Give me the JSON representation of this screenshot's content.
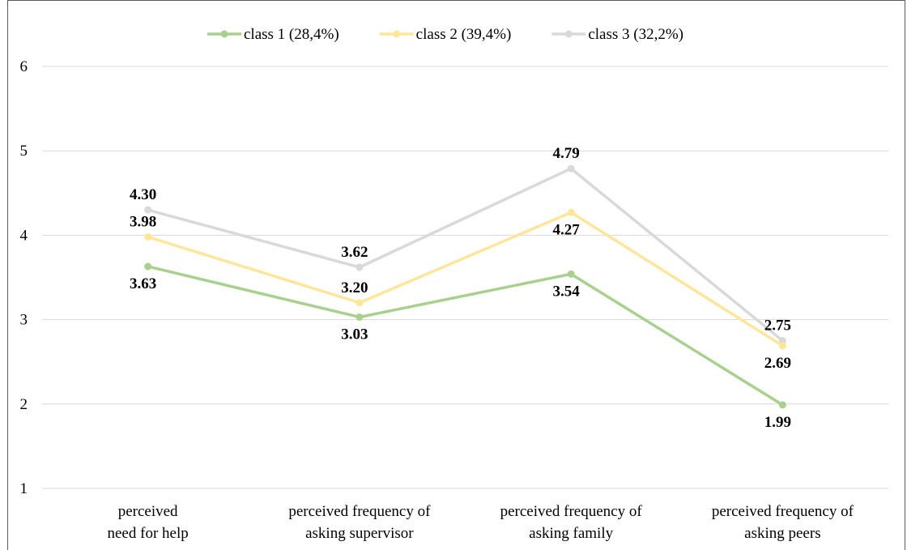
{
  "chart_data": {
    "type": "line",
    "title": "",
    "xlabel": "",
    "ylabel": "",
    "ylim": [
      1,
      6
    ],
    "yticks": [
      1,
      2,
      3,
      4,
      5,
      6
    ],
    "grid": "horizontal",
    "legend_position": "top",
    "categories": [
      [
        "perceived",
        "need for help"
      ],
      [
        "perceived frequency of",
        "asking supervisor"
      ],
      [
        "perceived frequency of",
        "asking family"
      ],
      [
        "perceived frequency of",
        "asking peers"
      ]
    ],
    "series": [
      {
        "name": "class 1 (28,4%)",
        "color": "#a9d18e",
        "values": [
          3.63,
          3.03,
          3.54,
          1.99
        ],
        "labels": [
          "3.63",
          "3.03",
          "3.54",
          "1.99"
        ],
        "label_pos": [
          "below",
          "below",
          "below",
          "below"
        ]
      },
      {
        "name": "class 2 (39,4%)",
        "color": "#ffe699",
        "values": [
          3.98,
          3.2,
          4.27,
          2.69
        ],
        "labels": [
          "3.98",
          "3.20",
          "4.27",
          "2.69"
        ],
        "label_pos": [
          "above",
          "above",
          "below",
          "below"
        ]
      },
      {
        "name": "class 3 (32,2%)",
        "color": "#d9d9d9",
        "values": [
          4.3,
          3.62,
          4.79,
          2.75
        ],
        "labels": [
          "4.30",
          "3.62",
          "4.79",
          "2.75"
        ],
        "label_pos": [
          "above",
          "above",
          "above",
          "above"
        ]
      }
    ]
  }
}
